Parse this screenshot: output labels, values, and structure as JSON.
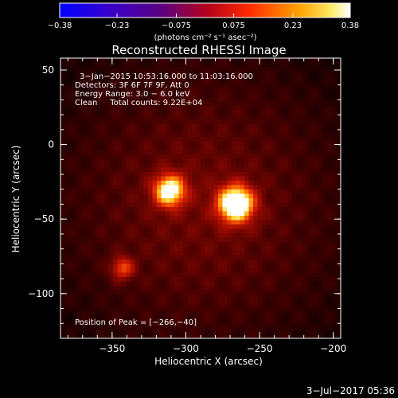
{
  "chart_data": {
    "type": "heatmap",
    "title": "Reconstructed RHESSI Image",
    "xlabel": "Heliocentric X (arcsec)",
    "ylabel": "Heliocentric Y (arcsec)",
    "xlim": [
      -385,
      -195
    ],
    "ylim": [
      -130,
      58
    ],
    "xticks": [
      -350,
      -300,
      -250,
      -200
    ],
    "xtick_labels": [
      "−350",
      "−300",
      "−250",
      "−200"
    ],
    "yticks": [
      50,
      0,
      -50,
      -100
    ],
    "ytick_labels": [
      "50",
      "0",
      "−50",
      "−100"
    ],
    "colorbar": {
      "range": [
        -0.38,
        0.38
      ],
      "ticks": [
        -0.38,
        -0.23,
        -0.075,
        0.075,
        0.23,
        0.38
      ],
      "tick_labels": [
        "−0.38",
        "−0.23",
        "−0.075",
        "0.075",
        "0.23",
        "0.38"
      ],
      "unit_label": "(photons cm⁻² s⁻¹ asec⁻²)"
    },
    "annotations": {
      "time_range": "3−Jan−2015 10:53:16.000 to 11:03:16.000",
      "detectors": "Detectors: 3F 6F 7F 9F, Att 0",
      "energy": "Energy Range: 3.0 − 6.0 keV",
      "clean": "Clean     Total counts: 9.22E+04",
      "peak": "Position of Peak = [−266,−40]"
    },
    "sources": [
      {
        "x": -311,
        "y": -31,
        "peak": 0.31,
        "sigma": 7.5
      },
      {
        "x": -266,
        "y": -40,
        "peak": 0.38,
        "sigma": 8.5
      },
      {
        "x": -343,
        "y": -83,
        "peak": 0.17,
        "sigma": 5.5
      }
    ],
    "background_level": 0.13
  },
  "footer": {
    "timestamp": "3−Jul−2017 05:36"
  }
}
